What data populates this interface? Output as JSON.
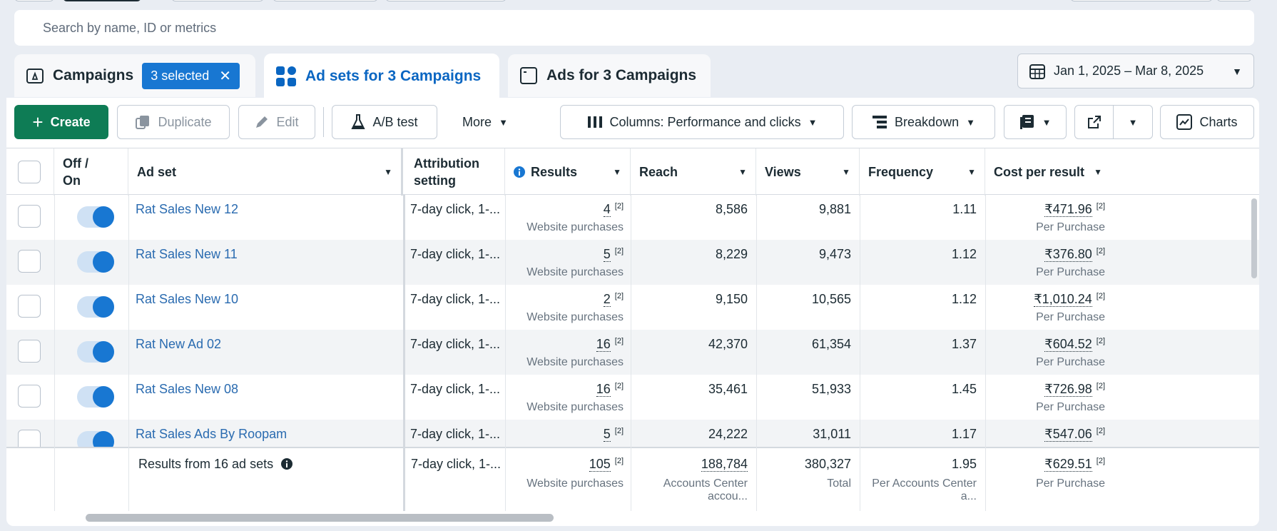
{
  "search": {
    "placeholder": "Search by name, ID or metrics"
  },
  "tabs": {
    "campaigns": {
      "label": "Campaigns",
      "selected_pill": "3 selected"
    },
    "adsets": {
      "label": "Ad sets for 3 Campaigns"
    },
    "ads": {
      "label": "Ads for 3 Campaigns"
    }
  },
  "date_range": "Jan 1, 2025 – Mar 8, 2025",
  "toolbar": {
    "create": "Create",
    "duplicate": "Duplicate",
    "edit": "Edit",
    "ab_test": "A/B test",
    "more": "More",
    "columns": "Columns: Performance and clicks",
    "breakdown": "Breakdown",
    "charts": "Charts"
  },
  "columns": {
    "off_on": "Off / On",
    "ad_set": "Ad set",
    "attribution": "Attribution setting",
    "results": "Results",
    "reach": "Reach",
    "views": "Views",
    "frequency": "Frequency",
    "cost_per_result": "Cost per result"
  },
  "rows": [
    {
      "name": "Rat Sales New 12",
      "attribution": "7-day click, 1-...",
      "results": "4",
      "results_sub": "Website purchases",
      "reach": "8,586",
      "views": "9,881",
      "frequency": "1.11",
      "cpr": "₹471.96",
      "cpr_sub": "Per Purchase",
      "footnote": "[2]"
    },
    {
      "name": "Rat Sales New 11",
      "attribution": "7-day click, 1-...",
      "results": "5",
      "results_sub": "Website purchases",
      "reach": "8,229",
      "views": "9,473",
      "frequency": "1.12",
      "cpr": "₹376.80",
      "cpr_sub": "Per Purchase",
      "footnote": "[2]"
    },
    {
      "name": "Rat Sales New 10",
      "attribution": "7-day click, 1-...",
      "results": "2",
      "results_sub": "Website purchases",
      "reach": "9,150",
      "views": "10,565",
      "frequency": "1.12",
      "cpr": "₹1,010.24",
      "cpr_sub": "Per Purchase",
      "footnote": "[2]"
    },
    {
      "name": "Rat New Ad 02",
      "attribution": "7-day click, 1-...",
      "results": "16",
      "results_sub": "Website purchases",
      "reach": "42,370",
      "views": "61,354",
      "frequency": "1.37",
      "cpr": "₹604.52",
      "cpr_sub": "Per Purchase",
      "footnote": "[2]"
    },
    {
      "name": "Rat Sales New 08",
      "attribution": "7-day click, 1-...",
      "results": "16",
      "results_sub": "Website purchases",
      "reach": "35,461",
      "views": "51,933",
      "frequency": "1.45",
      "cpr": "₹726.98",
      "cpr_sub": "Per Purchase",
      "footnote": "[2]"
    },
    {
      "name": "Rat Sales Ads By Roopam",
      "attribution": "7-day click, 1-...",
      "results": "5",
      "results_sub": "Website purchases",
      "reach": "24,222",
      "views": "31,011",
      "frequency": "1.17",
      "cpr": "₹547.06",
      "cpr_sub": "Per Purchase",
      "footnote": "[2]"
    }
  ],
  "totals": {
    "label": "Results from 16 ad sets",
    "attribution": "7-day click, 1-...",
    "results": "105",
    "results_sub": "Website purchases",
    "reach": "188,784",
    "reach_sub": "Accounts Center accou...",
    "views": "380,327",
    "views_sub": "Total",
    "frequency": "1.95",
    "frequency_sub": "Per Accounts Center a...",
    "cpr": "₹629.51",
    "cpr_sub": "Per Purchase",
    "footnote": "[2]"
  },
  "colors": {
    "accent": "#1877d2",
    "create": "#0e7c55",
    "link": "#2a6bb0"
  }
}
